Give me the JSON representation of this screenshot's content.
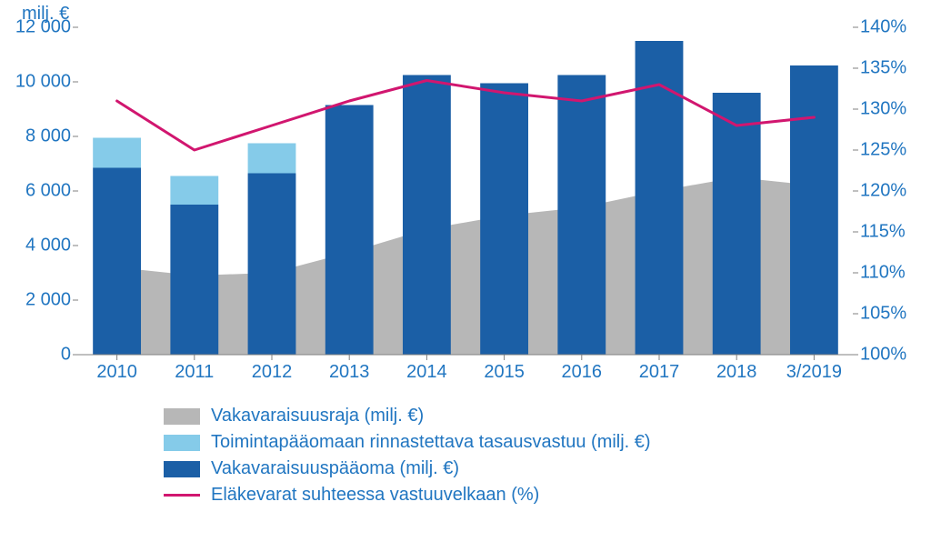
{
  "chart": {
    "type": "bar+area+line",
    "y_left_title": "milj. €",
    "y_left": {
      "min": 0,
      "max": 12000,
      "step": 2000,
      "ticks": [
        0,
        2000,
        4000,
        6000,
        8000,
        10000,
        12000
      ],
      "tick_labels": [
        "0",
        "2 000",
        "4 000",
        "6 000",
        "8 000",
        "10 000",
        "12 000"
      ],
      "color": "#2176c1"
    },
    "y_right": {
      "min": 100,
      "max": 140,
      "step": 5,
      "ticks": [
        100,
        105,
        110,
        115,
        120,
        125,
        130,
        135,
        140
      ],
      "tick_labels": [
        "100%",
        "105%",
        "110%",
        "115%",
        "120%",
        "125%",
        "130%",
        "135%",
        "140%"
      ],
      "color": "#2176c1"
    },
    "categories": [
      "2010",
      "2011",
      "2012",
      "2013",
      "2014",
      "2015",
      "2016",
      "2017",
      "2018",
      "3/2019"
    ],
    "series": {
      "vakavaraisuusraja": {
        "label": "Vakavaraisuusraja (milj. €)",
        "type": "area",
        "axis": "left",
        "color": "#b7b7b7",
        "values": [
          3200,
          2900,
          3000,
          3750,
          4600,
          5100,
          5400,
          6000,
          6500,
          6200
        ]
      },
      "tasausvastuu": {
        "label": "Toimintapääomaan rinnastettava tasausvastuu (milj. €)",
        "type": "bar-top",
        "axis": "left",
        "color": "#85cbe9",
        "values": [
          1100,
          1050,
          1100,
          0,
          0,
          0,
          0,
          0,
          0,
          0
        ]
      },
      "vakavaraisuuspaaoma": {
        "label": "Vakavaraisuuspääoma (milj. €)",
        "type": "bar-bottom",
        "axis": "left",
        "color": "#1b5fa6",
        "values": [
          6850,
          5500,
          6650,
          9150,
          10250,
          9950,
          10250,
          11500,
          9600,
          10600
        ]
      },
      "elakevarat": {
        "label": "Eläkevarat suhteessa vastuuvelkaan (%)",
        "type": "line",
        "axis": "right",
        "color": "#d1166f",
        "line_width": 3,
        "values": [
          131,
          125,
          128,
          131,
          133.5,
          132,
          131,
          133,
          128,
          129
        ]
      }
    },
    "legend_order": [
      "vakavaraisuusraja",
      "tasausvastuu",
      "vakavaraisuuspaaoma",
      "elakevarat"
    ],
    "bar_width_ratio": 0.62,
    "background_color": "#ffffff",
    "tick_color": "#808080",
    "axis_font_size": 20,
    "legend_font_size": 20,
    "title_font_size": 20
  }
}
